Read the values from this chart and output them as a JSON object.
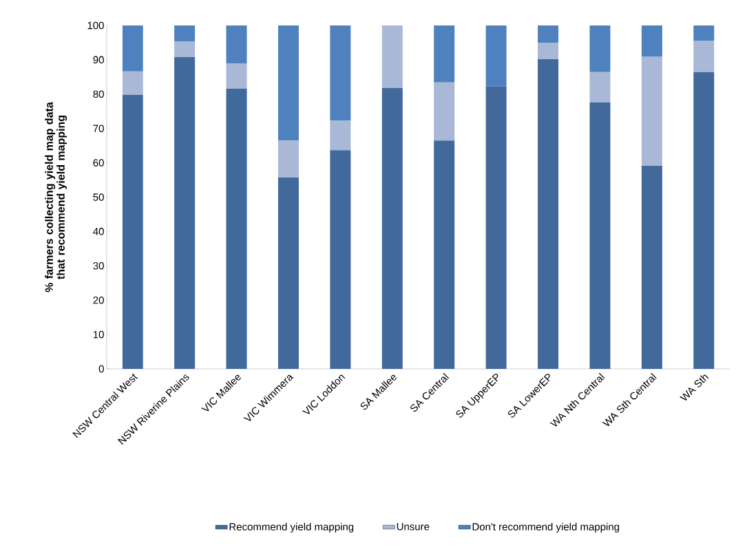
{
  "chart_data": {
    "type": "bar",
    "stacked": true,
    "ylabel": "% farmers collecting yield map data that recommend yield mapping",
    "categories": [
      "NSW Central West",
      "NSW Riverine Plains",
      "VIC Mallee",
      "VIC Wimmera",
      "VIC Loddon",
      "SA Mallee",
      "SA Central",
      "SA UpperEP",
      "SA LowerEP",
      "WA Nth Central",
      "WA Sth Central",
      "WA Sth"
    ],
    "series": [
      {
        "name": "Recommend yield mapping",
        "color": "#41699c",
        "values": [
          79.8,
          90.8,
          81.6,
          55.7,
          63.7,
          81.8,
          66.5,
          82.2,
          90.2,
          77.6,
          59.1,
          86.4
        ]
      },
      {
        "name": "Unsure",
        "color": "#a9b8d6",
        "values": [
          6.8,
          4.6,
          7.4,
          10.8,
          8.6,
          18.2,
          16.9,
          0,
          4.8,
          8.8,
          31.9,
          9.2
        ]
      },
      {
        "name": "Don't recommend yield mapping",
        "color": "#4e81bd",
        "values": [
          13.4,
          4.6,
          11.0,
          33.5,
          27.7,
          0,
          16.6,
          17.8,
          5.0,
          13.6,
          9.0,
          4.4
        ]
      }
    ],
    "ylim": [
      0,
      100
    ],
    "yticks": [
      0,
      10,
      20,
      30,
      40,
      50,
      60,
      70,
      80,
      90,
      100
    ],
    "grid": false,
    "legend": "bottom"
  }
}
